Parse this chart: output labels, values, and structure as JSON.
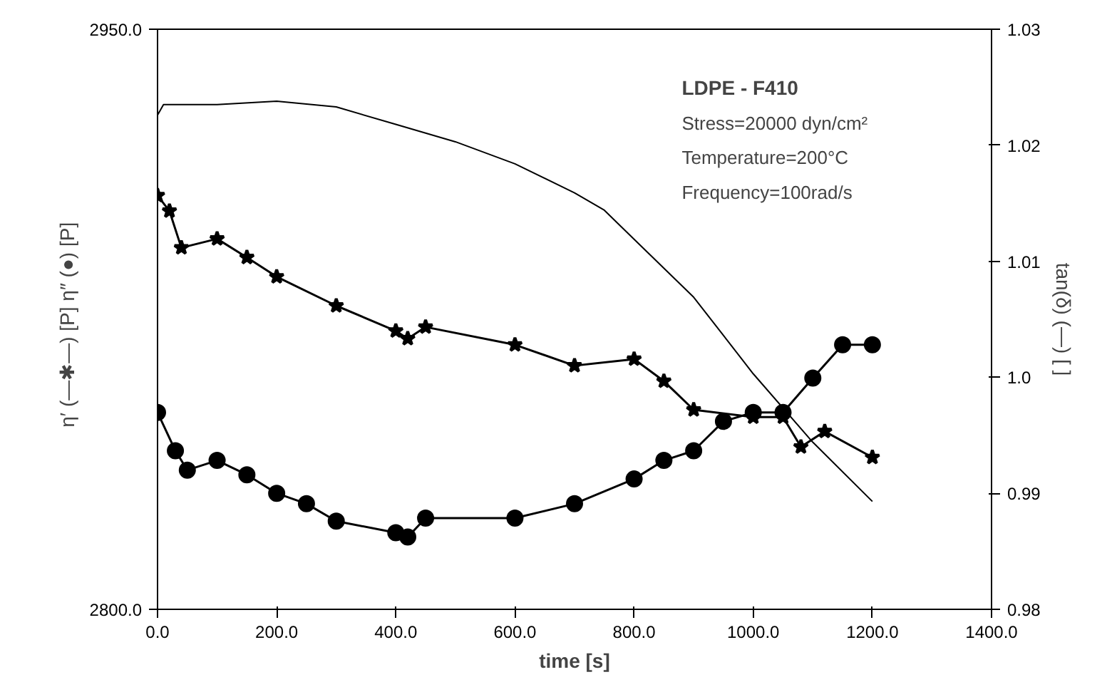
{
  "chart_data": {
    "type": "line",
    "xlabel": "time [s]",
    "ylabel": "η′ (—✱—) [P]   η″ (●) [P]",
    "y2label": "tan(δ) (—) [ ]",
    "xlim": [
      0,
      1400
    ],
    "xticks": [
      {
        "value": 0,
        "label": "0.0"
      },
      {
        "value": 200,
        "label": "200.0"
      },
      {
        "value": 400,
        "label": "400.0"
      },
      {
        "value": 600,
        "label": "600.0"
      },
      {
        "value": 800,
        "label": "800.0"
      },
      {
        "value": 1000,
        "label": "1000.0"
      },
      {
        "value": 1200,
        "label": "1200.0"
      },
      {
        "value": 1400,
        "label": "1400.0"
      }
    ],
    "ylim": [
      2800,
      2950
    ],
    "yticks": [
      {
        "value": 2800,
        "label": "2800.0"
      },
      {
        "value": 2950,
        "label": "2950.0"
      }
    ],
    "y2lim": [
      0.98,
      1.03
    ],
    "y2ticks": [
      0.98,
      0.99,
      {
        "value": 1.0,
        "label": "1.0"
      },
      1.01,
      1.02,
      1.03
    ],
    "grid": false,
    "annotations": [
      "LDPE - F410",
      "Stress=20000 dyn/cm²",
      "Temperature=200°C",
      "Frequency=100rad/s"
    ],
    "series": [
      {
        "color": "#000000",
        "marker": "star",
        "x": [
          0,
          20,
          40,
          100,
          150,
          200,
          300,
          400,
          420,
          450,
          600,
          700,
          800,
          850,
          900,
          1000,
          1050,
          1080,
          1120,
          1200
        ],
        "values": [
          2907,
          2903,
          2893.5,
          2895.8,
          2891,
          2886,
          2878.5,
          2872,
          2870,
          2873,
          2868.4,
          2863,
          2864.7,
          2859,
          2851.6,
          2849.7,
          2849.7,
          2842,
          2846,
          2839.3
        ]
      },
      {
        "color": "#000000",
        "marker": "circle",
        "x": [
          0,
          30,
          50,
          100,
          150,
          200,
          250,
          300,
          400,
          420,
          450,
          600,
          700,
          800,
          850,
          900,
          950,
          1000,
          1050,
          1100,
          1150,
          1200
        ],
        "values": [
          2850.9,
          2841,
          2836,
          2838.5,
          2834.8,
          2830,
          2827.3,
          2822.8,
          2819.8,
          2818.7,
          2823.6,
          2823.6,
          2827.3,
          2833.7,
          2838.5,
          2841,
          2848.6,
          2850.9,
          2850.9,
          2859.8,
          2868.4,
          2868.4
        ]
      },
      {
        "color": "#000000",
        "marker": "none",
        "axis": "y2",
        "x": [
          0,
          10,
          100,
          200,
          300,
          400,
          500,
          600,
          700,
          750,
          800,
          900,
          1000,
          1100,
          1200
        ],
        "values": [
          1.0226,
          1.0235,
          1.0235,
          1.0238,
          1.0233,
          1.0218,
          1.0203,
          1.0184,
          1.0159,
          1.0144,
          1.0119,
          1.0069,
          1.0003,
          0.9944,
          0.9893
        ]
      }
    ]
  }
}
